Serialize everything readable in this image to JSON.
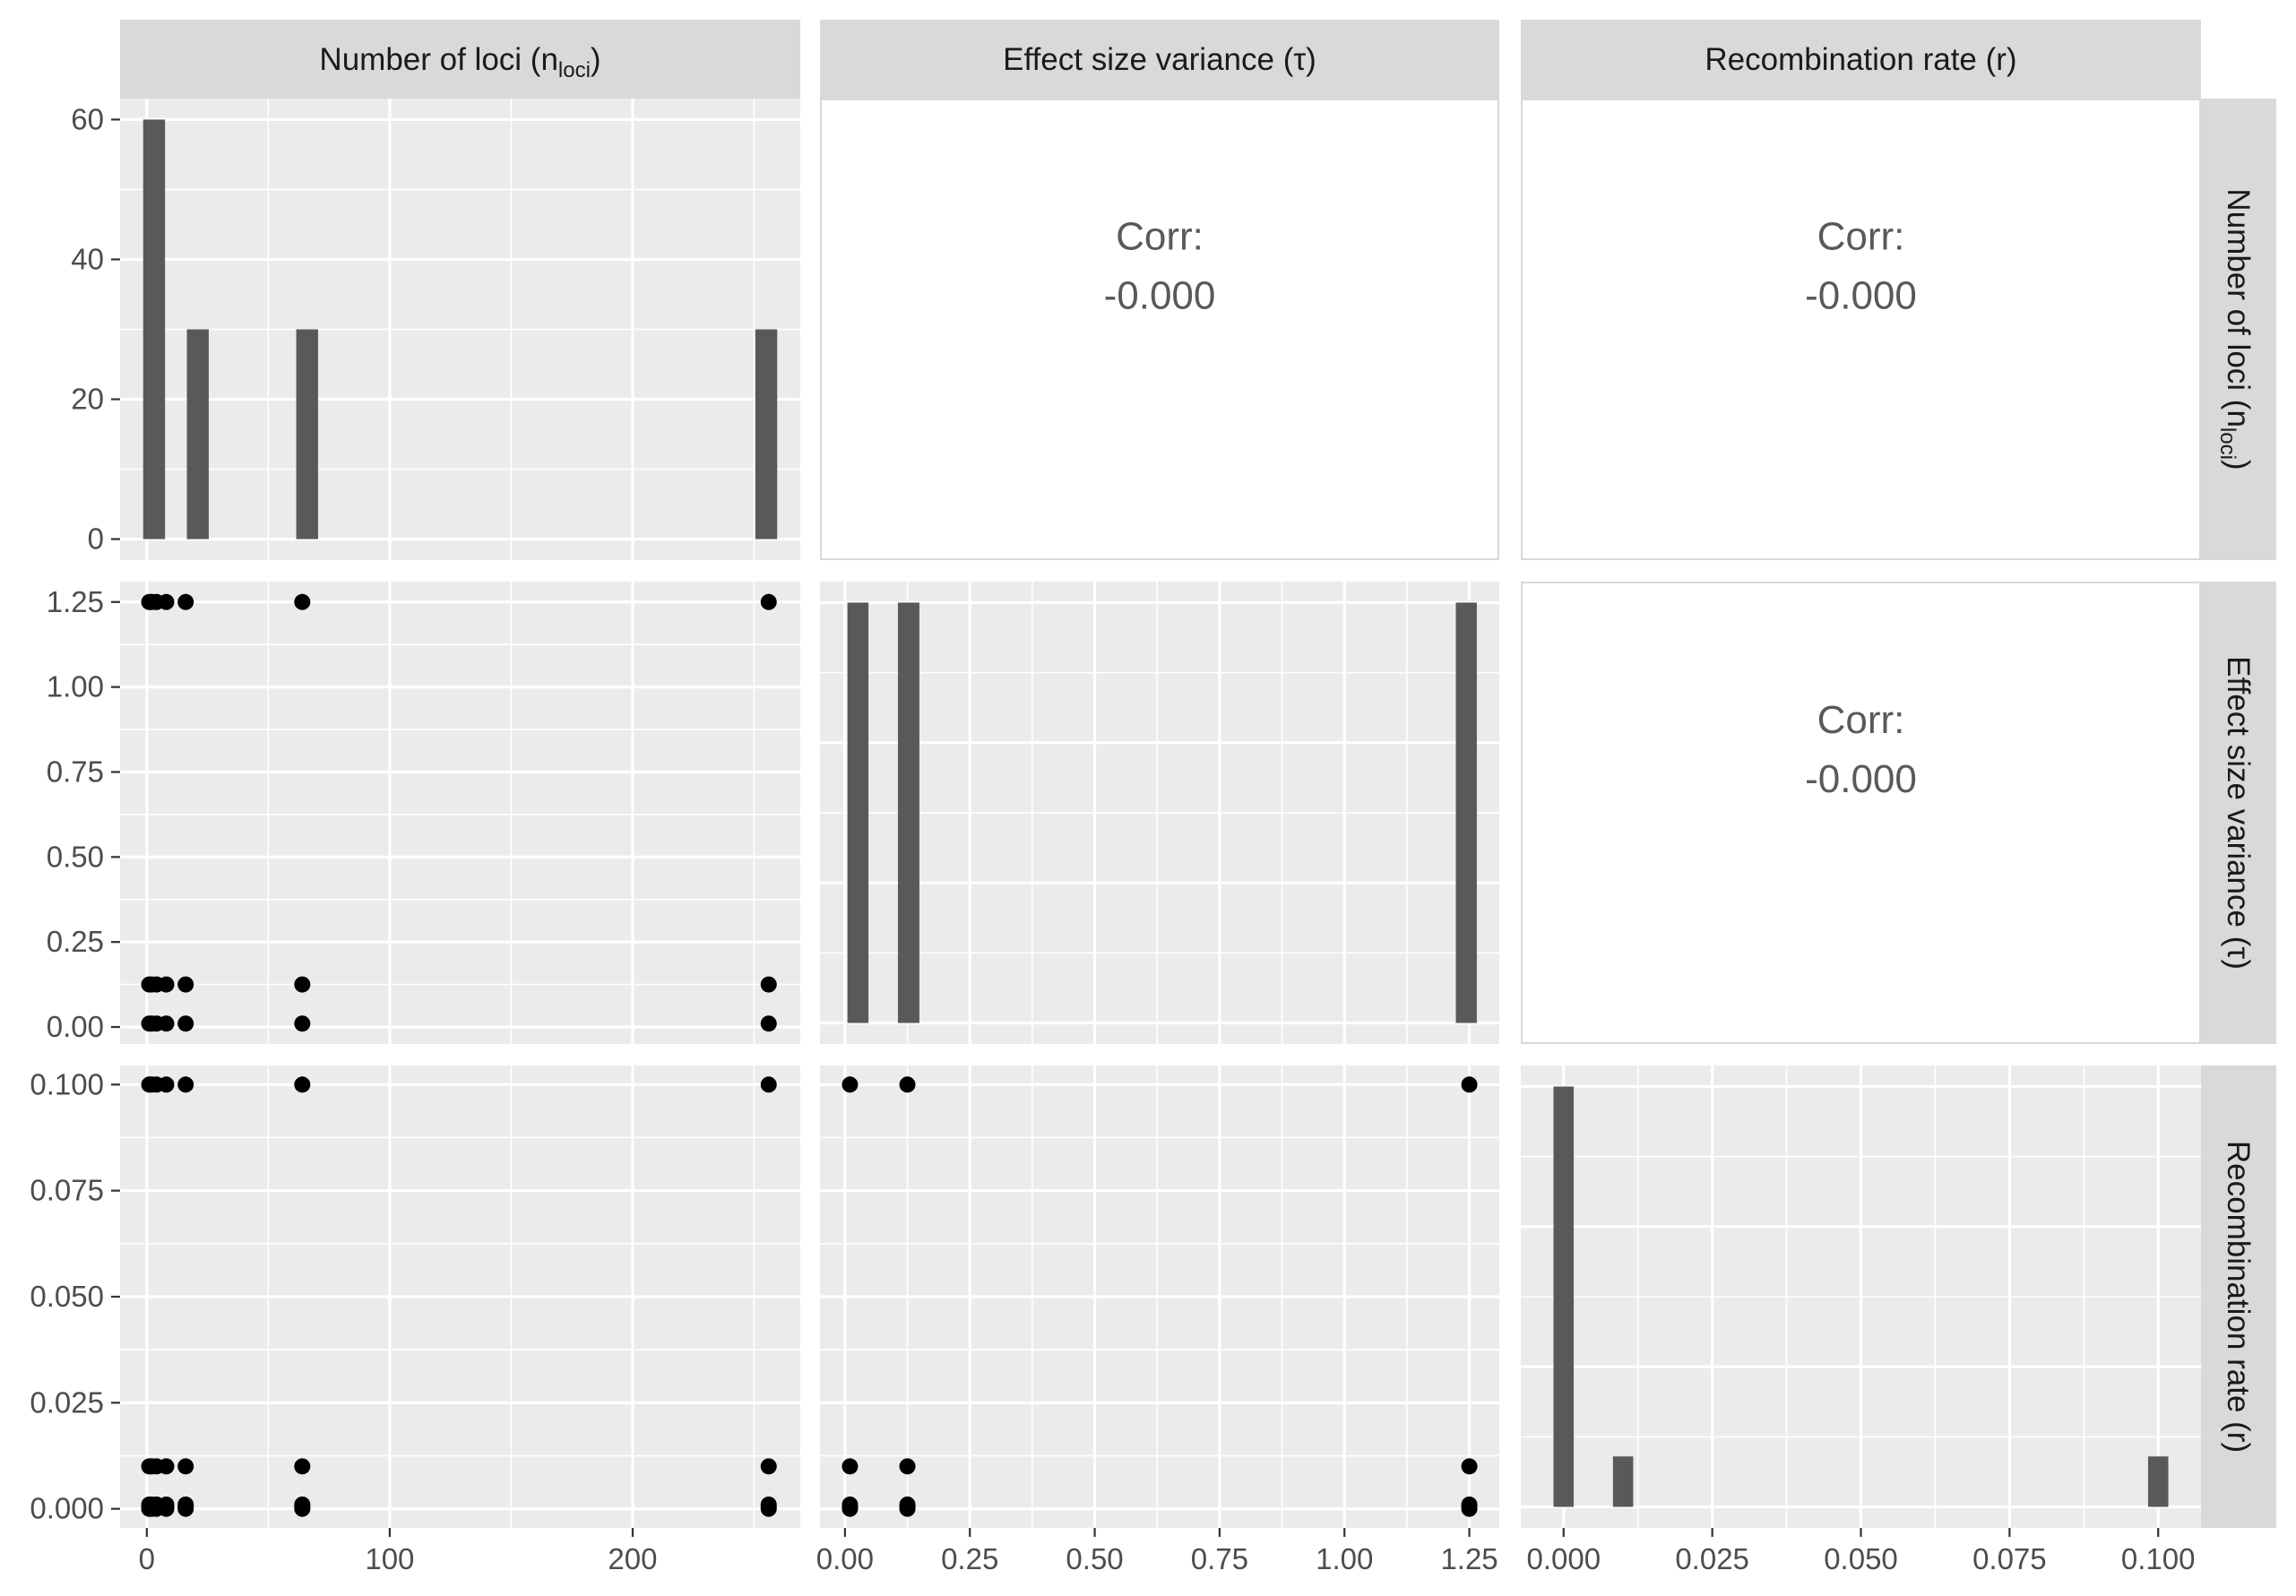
{
  "colors": {
    "panel_bg": "#EBEBEB",
    "strip_bg": "#D9D9D9",
    "grid": "#FFFFFF",
    "bar": "#595959",
    "point": "#000000",
    "corr_text": "#595959",
    "tick_text": "#4D4D4D",
    "strip_text": "#1A1A1A"
  },
  "strips": {
    "top": [
      {
        "main": "Number of loci (n",
        "sub": "loci",
        "tail": ")"
      },
      {
        "main": "Effect size variance (τ)",
        "sub": "",
        "tail": ""
      },
      {
        "main": "Recombination rate (r)",
        "sub": "",
        "tail": ""
      }
    ],
    "right": [
      {
        "main": "Number of loci (n",
        "sub": "loci",
        "tail": ")"
      },
      {
        "main": "Effect size variance (τ)",
        "sub": "",
        "tail": ""
      },
      {
        "main": "Recombination rate (r)",
        "sub": "",
        "tail": ""
      }
    ]
  },
  "chart_data": {
    "type": "scatter",
    "layout": "pairs-matrix",
    "variables": [
      "Number of loci (n_loci)",
      "Effect size variance (τ)",
      "Recombination rate (r)"
    ],
    "axes": {
      "x": [
        {
          "ticks": [
            0,
            100,
            200
          ],
          "tick_labels": [
            "0",
            "100",
            "200"
          ],
          "xlim": [
            -11,
            269
          ]
        },
        {
          "ticks": [
            0,
            0.25,
            0.5,
            0.75,
            1.0,
            1.25
          ],
          "tick_labels": [
            "0.00",
            "0.25",
            "0.50",
            "0.75",
            "1.00",
            "1.25"
          ],
          "xlim": [
            -0.05,
            1.31
          ]
        },
        {
          "ticks": [
            0,
            0.025,
            0.05,
            0.075,
            0.1
          ],
          "tick_labels": [
            "0.000",
            "0.025",
            "0.050",
            "0.075",
            "0.100"
          ],
          "xlim": [
            -0.0072,
            0.1072
          ]
        }
      ],
      "y_hist": {
        "ticks": [
          0,
          20,
          40,
          60
        ],
        "tick_labels": [
          "0",
          "20",
          "40",
          "60"
        ],
        "ylim": [
          -3,
          63
        ]
      },
      "y": [
        null,
        {
          "ticks": [
            0,
            0.25,
            0.5,
            0.75,
            1.0,
            1.25
          ],
          "tick_labels": [
            "0.00",
            "0.25",
            "0.50",
            "0.75",
            "1.00",
            "1.25"
          ],
          "ylim": [
            -0.05,
            1.31
          ]
        },
        {
          "ticks": [
            0,
            0.025,
            0.05,
            0.075,
            0.1
          ],
          "tick_labels": [
            "0.000",
            "0.025",
            "0.050",
            "0.075",
            "0.100"
          ],
          "ylim": [
            -0.0045,
            0.1045
          ]
        }
      ]
    },
    "histograms": [
      {
        "variable": 0,
        "count_axis": "shown",
        "bars": [
          {
            "x0": -1.5,
            "x1": 7.5,
            "count": 60
          },
          {
            "x0": 16.5,
            "x1": 25.5,
            "count": 30
          },
          {
            "x0": 61.5,
            "x1": 70.5,
            "count": 30
          },
          {
            "x0": 250.5,
            "x1": 259.5,
            "count": 30
          }
        ]
      },
      {
        "variable": 1,
        "count_axis": "hidden",
        "count_max": 60,
        "bars": [
          {
            "x0": 0.005,
            "x1": 0.047,
            "count": 60
          },
          {
            "x0": 0.106,
            "x1": 0.149,
            "count": 60
          },
          {
            "x0": 1.223,
            "x1": 1.265,
            "count": 60
          }
        ]
      },
      {
        "variable": 2,
        "count_axis": "hidden",
        "count_max": 100,
        "bars": [
          {
            "x0": -0.0017,
            "x1": 0.0017,
            "count": 100
          },
          {
            "x0": 0.0083,
            "x1": 0.0117,
            "count": 12
          },
          {
            "x0": 0.0983,
            "x1": 0.1017,
            "count": 12
          }
        ]
      }
    ],
    "scatter": [
      {
        "x_var": 0,
        "y_var": 1,
        "points": [
          [
            1,
            0.01
          ],
          [
            2,
            0.01
          ],
          [
            4,
            0.01
          ],
          [
            8,
            0.01
          ],
          [
            16,
            0.01
          ],
          [
            64,
            0.01
          ],
          [
            256,
            0.01
          ],
          [
            1,
            0.125
          ],
          [
            2,
            0.125
          ],
          [
            4,
            0.125
          ],
          [
            8,
            0.125
          ],
          [
            16,
            0.125
          ],
          [
            64,
            0.125
          ],
          [
            256,
            0.125
          ],
          [
            1,
            1.25
          ],
          [
            2,
            1.25
          ],
          [
            4,
            1.25
          ],
          [
            8,
            1.25
          ],
          [
            16,
            1.25
          ],
          [
            64,
            1.25
          ],
          [
            256,
            1.25
          ]
        ]
      },
      {
        "x_var": 0,
        "y_var": 2,
        "points": [
          [
            1,
            0
          ],
          [
            2,
            0
          ],
          [
            4,
            0
          ],
          [
            8,
            0
          ],
          [
            16,
            0
          ],
          [
            64,
            0
          ],
          [
            256,
            0
          ],
          [
            1,
            0.0005
          ],
          [
            2,
            0.0005
          ],
          [
            4,
            0.0005
          ],
          [
            8,
            0.0005
          ],
          [
            16,
            0.0005
          ],
          [
            64,
            0.0005
          ],
          [
            256,
            0.0005
          ],
          [
            1,
            0.001
          ],
          [
            2,
            0.001
          ],
          [
            4,
            0.001
          ],
          [
            8,
            0.001
          ],
          [
            16,
            0.001
          ],
          [
            64,
            0.001
          ],
          [
            256,
            0.001
          ],
          [
            1,
            0.01
          ],
          [
            2,
            0.01
          ],
          [
            4,
            0.01
          ],
          [
            8,
            0.01
          ],
          [
            16,
            0.01
          ],
          [
            64,
            0.01
          ],
          [
            256,
            0.01
          ],
          [
            1,
            0.1
          ],
          [
            2,
            0.1
          ],
          [
            4,
            0.1
          ],
          [
            8,
            0.1
          ],
          [
            16,
            0.1
          ],
          [
            64,
            0.1
          ],
          [
            256,
            0.1
          ]
        ]
      },
      {
        "x_var": 1,
        "y_var": 2,
        "points": [
          [
            0.01,
            0
          ],
          [
            0.125,
            0
          ],
          [
            1.25,
            0
          ],
          [
            0.01,
            0.0005
          ],
          [
            0.125,
            0.0005
          ],
          [
            1.25,
            0.0005
          ],
          [
            0.01,
            0.001
          ],
          [
            0.125,
            0.001
          ],
          [
            1.25,
            0.001
          ],
          [
            0.01,
            0.01
          ],
          [
            0.125,
            0.01
          ],
          [
            1.25,
            0.01
          ],
          [
            0.01,
            0.1
          ],
          [
            0.125,
            0.1
          ],
          [
            1.25,
            0.1
          ]
        ]
      }
    ],
    "correlations": [
      {
        "row": 0,
        "col": 1,
        "label": "Corr:",
        "value": "-0.000"
      },
      {
        "row": 0,
        "col": 2,
        "label": "Corr:",
        "value": "-0.000"
      },
      {
        "row": 1,
        "col": 2,
        "label": "Corr:",
        "value": "-0.000"
      }
    ]
  }
}
